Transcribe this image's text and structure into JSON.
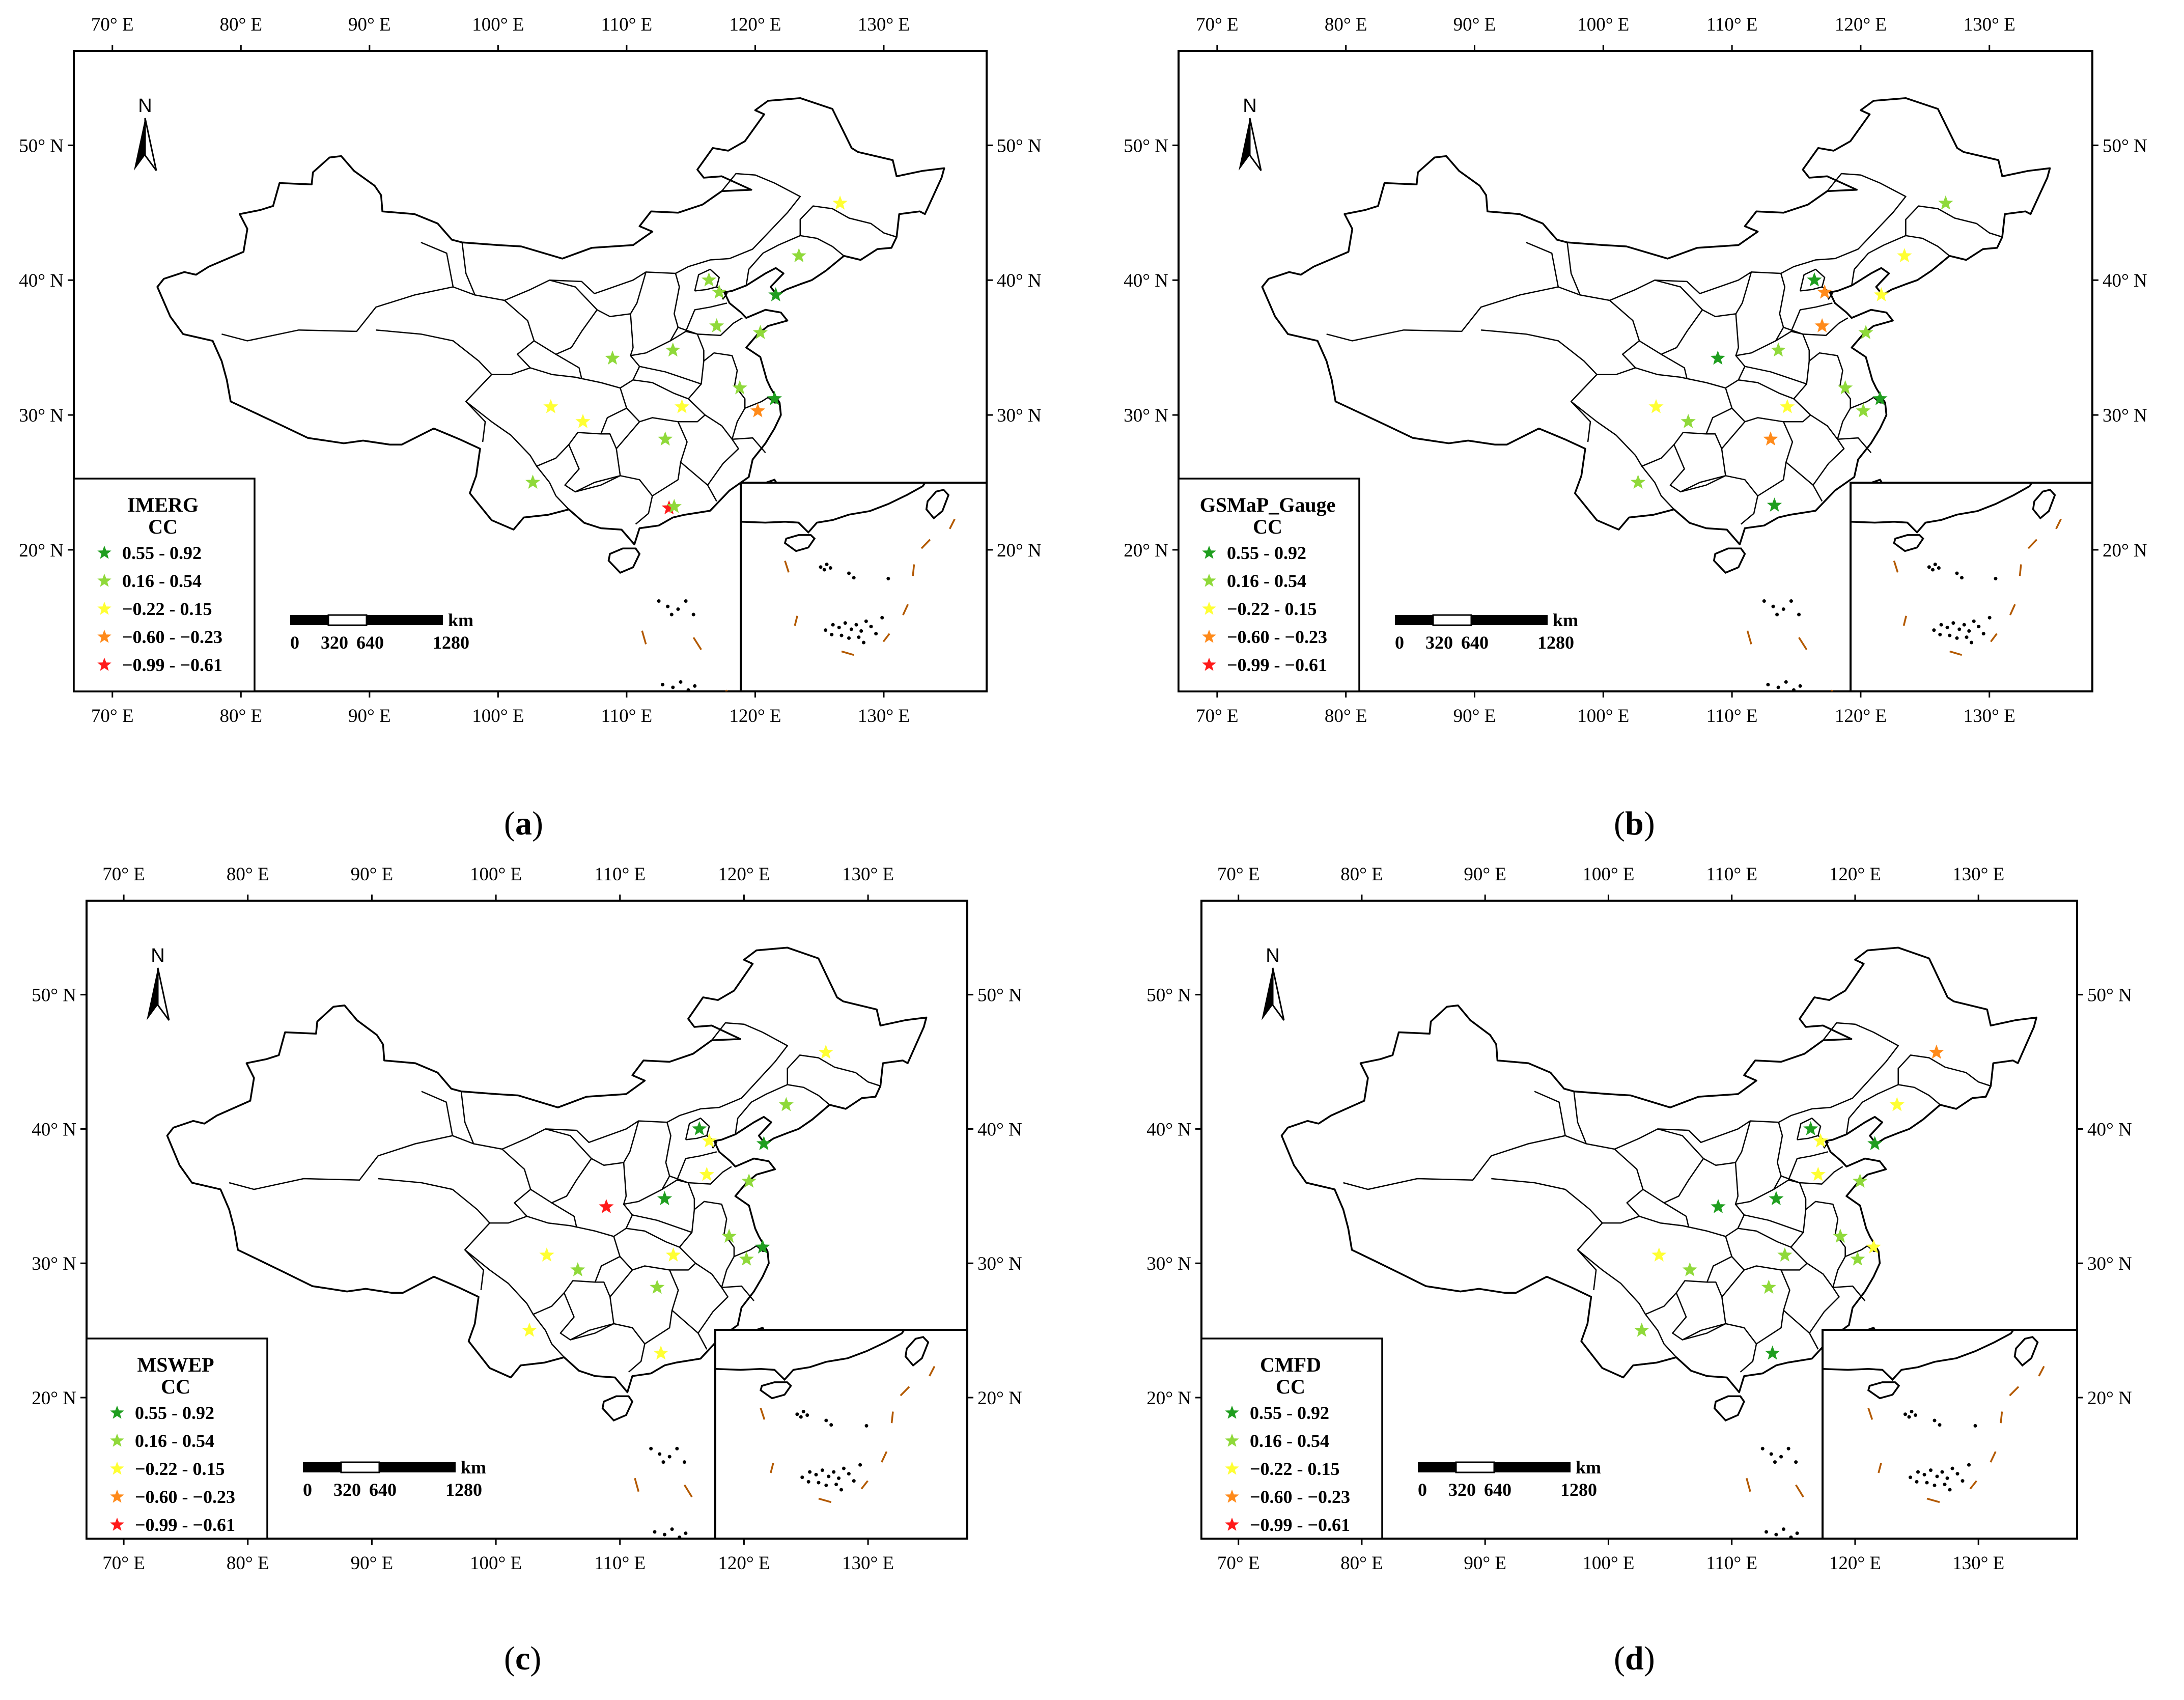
{
  "panels": [
    {
      "id": "a",
      "caption_open": "(",
      "caption_letter": "a",
      "caption_close": ")",
      "legend": {
        "product": "IMERG",
        "metric": "CC"
      },
      "stations": [
        {
          "lon": 126.6,
          "lat": 45.7,
          "cls": 2
        },
        {
          "lon": 123.4,
          "lat": 41.8,
          "cls": 1
        },
        {
          "lon": 116.4,
          "lat": 40.0,
          "cls": 1
        },
        {
          "lon": 117.2,
          "lat": 39.1,
          "cls": 1
        },
        {
          "lon": 121.6,
          "lat": 38.9,
          "cls": 0
        },
        {
          "lon": 117.0,
          "lat": 36.6,
          "cls": 1
        },
        {
          "lon": 120.4,
          "lat": 36.1,
          "cls": 1
        },
        {
          "lon": 113.6,
          "lat": 34.8,
          "cls": 1
        },
        {
          "lon": 108.9,
          "lat": 34.2,
          "cls": 1
        },
        {
          "lon": 118.8,
          "lat": 32.0,
          "cls": 1
        },
        {
          "lon": 121.5,
          "lat": 31.2,
          "cls": 0
        },
        {
          "lon": 120.2,
          "lat": 30.3,
          "cls": 3
        },
        {
          "lon": 104.1,
          "lat": 30.6,
          "cls": 2
        },
        {
          "lon": 106.6,
          "lat": 29.5,
          "cls": 2
        },
        {
          "lon": 114.3,
          "lat": 30.6,
          "cls": 2
        },
        {
          "lon": 113.0,
          "lat": 28.2,
          "cls": 1
        },
        {
          "lon": 102.7,
          "lat": 25.0,
          "cls": 1
        },
        {
          "lon": 113.3,
          "lat": 23.1,
          "cls": 4
        },
        {
          "lon": 113.7,
          "lat": 23.2,
          "cls": 1
        }
      ]
    },
    {
      "id": "b",
      "caption_open": "(",
      "caption_letter": "b",
      "caption_close": ")",
      "legend": {
        "product": "GSMaP_Gauge",
        "metric": "CC"
      },
      "stations": [
        {
          "lon": 126.6,
          "lat": 45.7,
          "cls": 1
        },
        {
          "lon": 123.4,
          "lat": 41.8,
          "cls": 2
        },
        {
          "lon": 116.4,
          "lat": 40.0,
          "cls": 0
        },
        {
          "lon": 117.2,
          "lat": 39.1,
          "cls": 3
        },
        {
          "lon": 121.6,
          "lat": 38.9,
          "cls": 2
        },
        {
          "lon": 117.0,
          "lat": 36.6,
          "cls": 3
        },
        {
          "lon": 120.4,
          "lat": 36.1,
          "cls": 1
        },
        {
          "lon": 113.6,
          "lat": 34.8,
          "cls": 1
        },
        {
          "lon": 108.9,
          "lat": 34.2,
          "cls": 0
        },
        {
          "lon": 118.8,
          "lat": 32.0,
          "cls": 1
        },
        {
          "lon": 121.5,
          "lat": 31.2,
          "cls": 0
        },
        {
          "lon": 120.2,
          "lat": 30.3,
          "cls": 1
        },
        {
          "lon": 104.1,
          "lat": 30.6,
          "cls": 2
        },
        {
          "lon": 106.6,
          "lat": 29.5,
          "cls": 1
        },
        {
          "lon": 114.3,
          "lat": 30.6,
          "cls": 2
        },
        {
          "lon": 113.0,
          "lat": 28.2,
          "cls": 3
        },
        {
          "lon": 102.7,
          "lat": 25.0,
          "cls": 1
        },
        {
          "lon": 113.3,
          "lat": 23.3,
          "cls": 0
        }
      ]
    },
    {
      "id": "c",
      "caption_open": "(",
      "caption_letter": "c",
      "caption_close": ")",
      "legend": {
        "product": "MSWEP",
        "metric": "CC"
      },
      "stations": [
        {
          "lon": 126.6,
          "lat": 45.7,
          "cls": 2
        },
        {
          "lon": 123.4,
          "lat": 41.8,
          "cls": 1
        },
        {
          "lon": 116.4,
          "lat": 40.0,
          "cls": 0
        },
        {
          "lon": 117.2,
          "lat": 39.1,
          "cls": 2
        },
        {
          "lon": 121.6,
          "lat": 38.9,
          "cls": 0
        },
        {
          "lon": 117.0,
          "lat": 36.6,
          "cls": 2
        },
        {
          "lon": 120.4,
          "lat": 36.1,
          "cls": 1
        },
        {
          "lon": 113.6,
          "lat": 34.8,
          "cls": 0
        },
        {
          "lon": 108.9,
          "lat": 34.2,
          "cls": 4
        },
        {
          "lon": 118.8,
          "lat": 32.0,
          "cls": 1
        },
        {
          "lon": 121.5,
          "lat": 31.2,
          "cls": 0
        },
        {
          "lon": 120.2,
          "lat": 30.3,
          "cls": 1
        },
        {
          "lon": 104.1,
          "lat": 30.6,
          "cls": 2
        },
        {
          "lon": 106.6,
          "lat": 29.5,
          "cls": 1
        },
        {
          "lon": 114.3,
          "lat": 30.6,
          "cls": 2
        },
        {
          "lon": 113.0,
          "lat": 28.2,
          "cls": 1
        },
        {
          "lon": 102.7,
          "lat": 25.0,
          "cls": 2
        },
        {
          "lon": 113.3,
          "lat": 23.3,
          "cls": 2
        }
      ]
    },
    {
      "id": "d",
      "caption_open": "(",
      "caption_letter": "d",
      "caption_close": ")",
      "legend": {
        "product": "CMFD",
        "metric": "CC"
      },
      "stations": [
        {
          "lon": 126.6,
          "lat": 45.7,
          "cls": 3
        },
        {
          "lon": 123.4,
          "lat": 41.8,
          "cls": 2
        },
        {
          "lon": 116.4,
          "lat": 40.0,
          "cls": 0
        },
        {
          "lon": 117.2,
          "lat": 39.1,
          "cls": 2
        },
        {
          "lon": 121.6,
          "lat": 38.9,
          "cls": 0
        },
        {
          "lon": 117.0,
          "lat": 36.6,
          "cls": 2
        },
        {
          "lon": 120.4,
          "lat": 36.1,
          "cls": 1
        },
        {
          "lon": 113.6,
          "lat": 34.8,
          "cls": 0
        },
        {
          "lon": 108.9,
          "lat": 34.2,
          "cls": 0
        },
        {
          "lon": 118.8,
          "lat": 32.0,
          "cls": 1
        },
        {
          "lon": 121.5,
          "lat": 31.2,
          "cls": 2
        },
        {
          "lon": 120.2,
          "lat": 30.3,
          "cls": 1
        },
        {
          "lon": 104.1,
          "lat": 30.6,
          "cls": 2
        },
        {
          "lon": 106.6,
          "lat": 29.5,
          "cls": 1
        },
        {
          "lon": 114.3,
          "lat": 30.6,
          "cls": 1
        },
        {
          "lon": 113.0,
          "lat": 28.2,
          "cls": 1
        },
        {
          "lon": 102.7,
          "lat": 25.0,
          "cls": 1
        },
        {
          "lon": 113.3,
          "lat": 23.3,
          "cls": 0
        }
      ]
    }
  ],
  "legend_classes": [
    {
      "label": "0.55 - 0.92",
      "color": "#1f9e1f"
    },
    {
      "label": "0.16 - 0.54",
      "color": "#8fd93a"
    },
    {
      "label": "−0.22 - 0.15",
      "color": "#ffff33"
    },
    {
      "label": "−0.60 - −0.23",
      "color": "#ff8a1a"
    },
    {
      "label": "−0.99 - −0.61",
      "color": "#ff1a1a"
    }
  ],
  "lon_ticks": [
    "70° E",
    "80° E",
    "90° E",
    "100° E",
    "110° E",
    "120° E",
    "130° E"
  ],
  "lat_ticks": [
    "50° N",
    "40° N",
    "30° N",
    "20° N"
  ],
  "lon_values": [
    70,
    80,
    90,
    100,
    110,
    120,
    130
  ],
  "lat_values": [
    50,
    40,
    30,
    20
  ],
  "scale_bar": {
    "unit": "km",
    "labels": [
      "0",
      "320",
      "640",
      "1280"
    ]
  },
  "north_label": "N",
  "colors": {
    "boundary": "#000000",
    "nine_dash": "#b35900"
  }
}
